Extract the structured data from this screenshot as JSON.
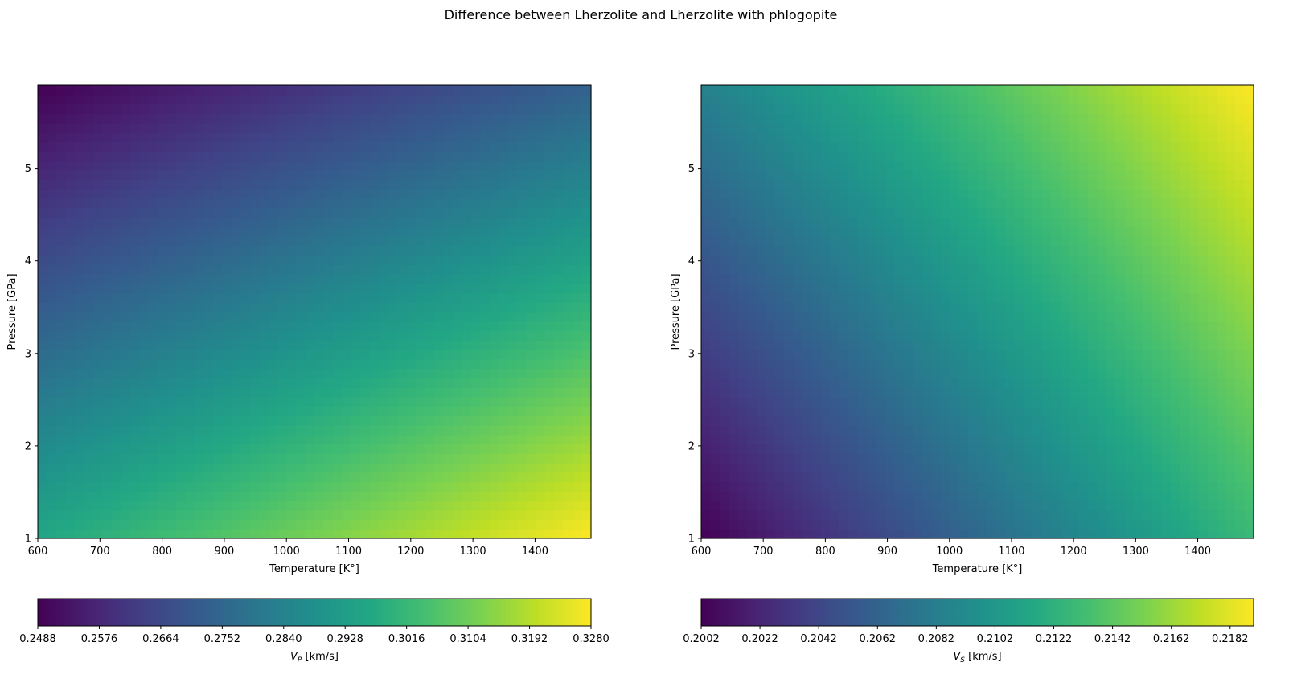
{
  "figure": {
    "title": "Difference between Lherzolite and Lherzolite with phlogopite"
  },
  "chart_data": [
    {
      "type": "heatmap",
      "xlabel": "Temperature [K°]",
      "ylabel": "Pressure [GPa]",
      "xlim": [
        600,
        1490
      ],
      "ylim": [
        1,
        5.9
      ],
      "xticks": [
        600,
        700,
        800,
        900,
        1000,
        1100,
        1200,
        1300,
        1400
      ],
      "yticks": [
        1,
        2,
        3,
        4,
        5
      ],
      "x_tick_labels": [
        "600",
        "700",
        "800",
        "900",
        "1000",
        "1100",
        "1200",
        "1300",
        "1400"
      ],
      "y_tick_labels": [
        "1",
        "2",
        "3",
        "4",
        "5"
      ],
      "colormap": "viridis",
      "corner_values": {
        "T600_P1": 0.296,
        "T1490_P1": 0.328,
        "T600_P5.9": 0.2488,
        "T1490_P5.9": 0.2735
      },
      "colorbar": {
        "label": "VP [km/s]",
        "label_main": "V",
        "label_sub": "P",
        "label_unit": " [km/s]",
        "min": 0.2488,
        "max": 0.328,
        "ticks": [
          "0.2488",
          "0.2576",
          "0.2664",
          "0.2752",
          "0.2840",
          "0.2928",
          "0.3016",
          "0.3104",
          "0.3192",
          "0.3280"
        ]
      }
    },
    {
      "type": "heatmap",
      "xlabel": "Temperature [K°]",
      "ylabel": "Pressure [GPa]",
      "xlim": [
        600,
        1490
      ],
      "ylim": [
        1,
        5.9
      ],
      "xticks": [
        600,
        700,
        800,
        900,
        1000,
        1100,
        1200,
        1300,
        1400
      ],
      "yticks": [
        1,
        2,
        3,
        4,
        5
      ],
      "x_tick_labels": [
        "600",
        "700",
        "800",
        "900",
        "1000",
        "1100",
        "1200",
        "1300",
        "1400"
      ],
      "y_tick_labels": [
        "1",
        "2",
        "3",
        "4",
        "5"
      ],
      "colormap": "viridis",
      "corner_values": {
        "T600_P1": 0.2002,
        "T1490_P1": 0.2129,
        "T600_P5.9": 0.2084,
        "T1490_P5.9": 0.219
      },
      "colorbar": {
        "label": "VS [km/s]",
        "label_main": "V",
        "label_sub": "S",
        "label_unit": " [km/s]",
        "min": 0.2002,
        "max": 0.219,
        "ticks": [
          "0.2002",
          "0.2022",
          "0.2042",
          "0.2062",
          "0.2082",
          "0.2102",
          "0.2122",
          "0.2142",
          "0.2162",
          "0.2182"
        ]
      }
    }
  ]
}
